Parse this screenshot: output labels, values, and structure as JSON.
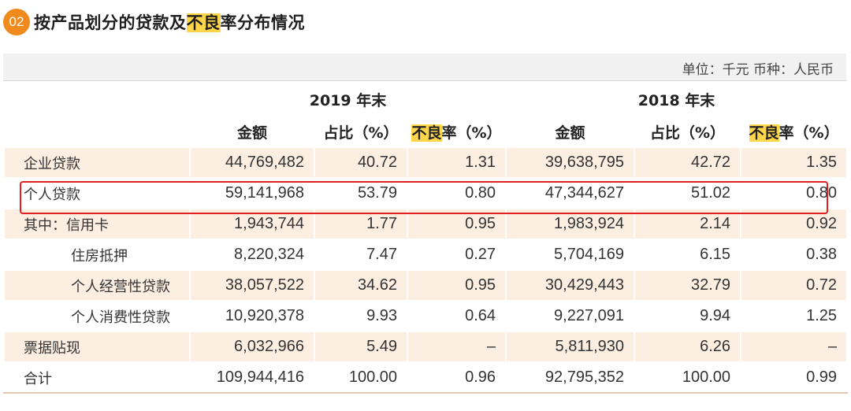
{
  "header": {
    "badge": "02",
    "title_part1": "按产品划分的贷款及",
    "title_highlight": "不良",
    "title_part2": "率分布情况"
  },
  "unit_text": "单位：千元  币种：人民币",
  "table": {
    "year_headers": [
      "2019 年末",
      "2018 年末"
    ],
    "col_amount": "金额",
    "col_share": "占比（%）",
    "col_npl_highlight": "不良",
    "col_npl_rest": "率（%）",
    "rows": [
      {
        "label": "企业贷款",
        "v": [
          "44,769,482",
          "40.72",
          "1.31",
          "39,638,795",
          "42.72",
          "1.35"
        ]
      },
      {
        "label": "个人贷款",
        "v": [
          "59,141,968",
          "53.79",
          "0.80",
          "47,344,627",
          "51.02",
          "0.80"
        ]
      },
      {
        "label": "其中：信用卡",
        "v": [
          "1,943,744",
          "1.77",
          "0.95",
          "1,983,924",
          "2.14",
          "0.92"
        ]
      },
      {
        "label": "住房抵押",
        "v": [
          "8,220,324",
          "7.47",
          "0.27",
          "5,704,169",
          "6.15",
          "0.38"
        ]
      },
      {
        "label": "个人经营性贷款",
        "v": [
          "38,057,522",
          "34.62",
          "0.95",
          "30,429,443",
          "32.79",
          "0.72"
        ]
      },
      {
        "label": "个人消费性贷款",
        "v": [
          "10,920,378",
          "9.93",
          "0.64",
          "9,227,091",
          "9.94",
          "1.25"
        ]
      },
      {
        "label": "票据贴现",
        "v": [
          "6,032,966",
          "5.49",
          "–",
          "5,811,930",
          "6.26",
          "–"
        ]
      },
      {
        "label": "合计",
        "v": [
          "109,944,416",
          "100.00",
          "0.96",
          "92,795,352",
          "100.00",
          "0.99"
        ]
      }
    ]
  }
}
